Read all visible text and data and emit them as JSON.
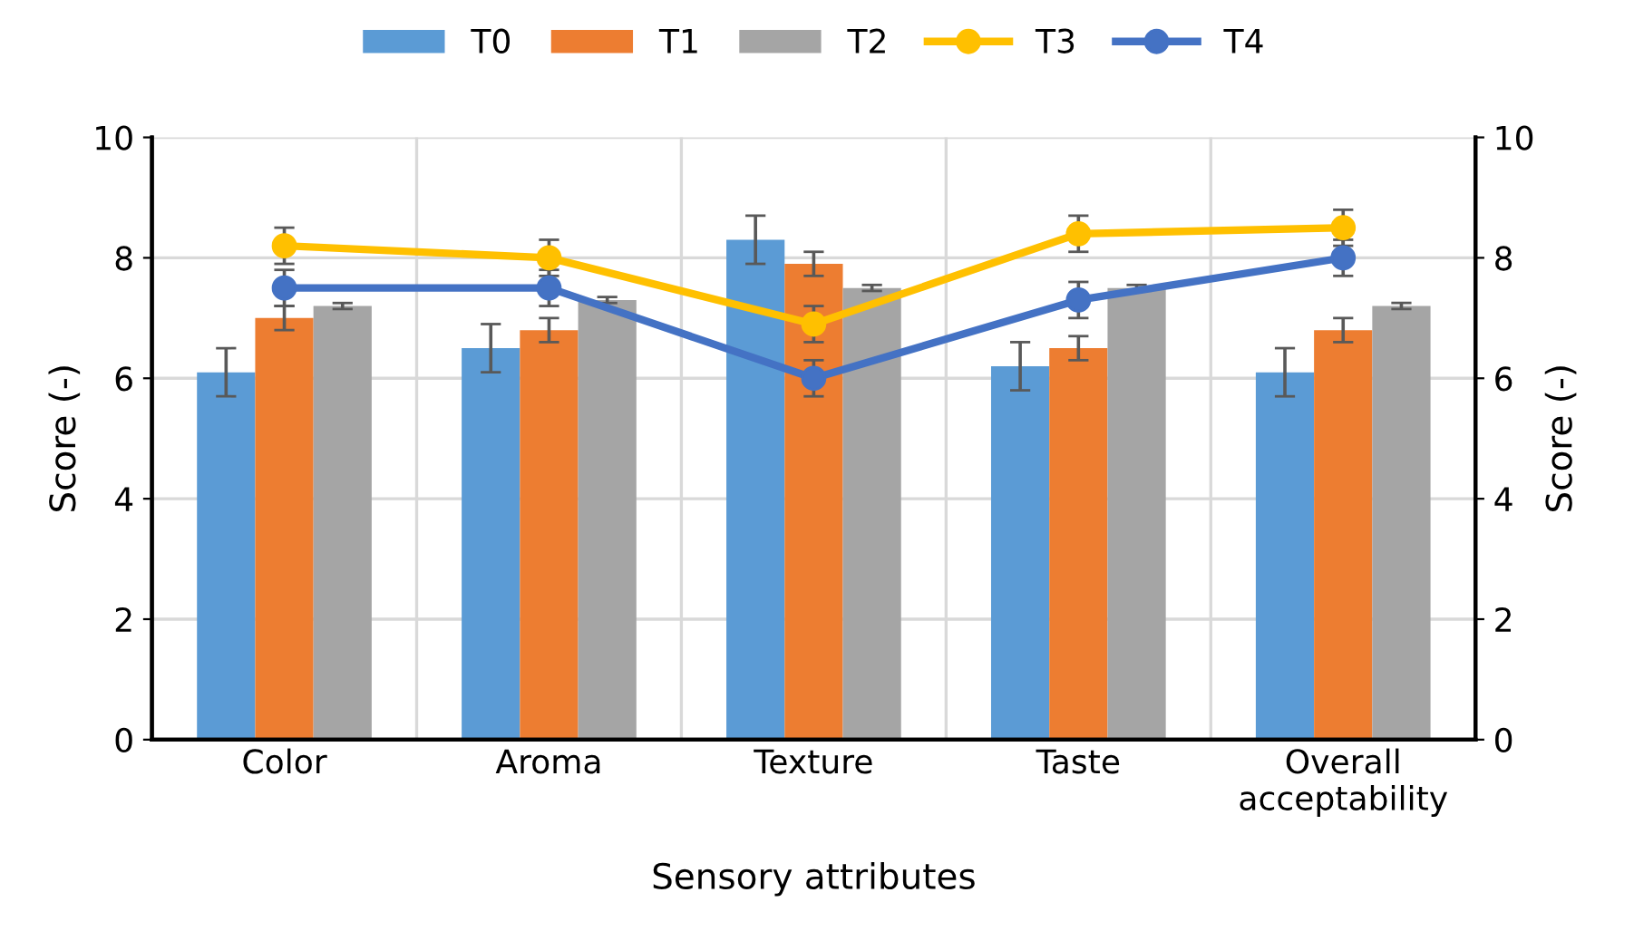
{
  "chart_data": {
    "type": "bar",
    "xlabel": "Sensory attributes",
    "ylabel": "Score (-)",
    "y2label": "Score (-)",
    "categories": [
      "Color",
      "Aroma",
      "Texture",
      "Taste",
      "Overall\nacceptability"
    ],
    "series": [
      {
        "name": "T0",
        "color": "#5b9bd5",
        "values": [
          6.1,
          6.5,
          8.3,
          6.2,
          6.1
        ],
        "errors": [
          0.4,
          0.4,
          0.4,
          0.4,
          0.4
        ]
      },
      {
        "name": "T1",
        "color": "#ed7d31",
        "values": [
          7.0,
          6.8,
          7.9,
          6.5,
          6.8
        ],
        "errors": [
          0.2,
          0.2,
          0.2,
          0.2,
          0.2
        ]
      },
      {
        "name": "T2",
        "color": "#a5a5a5",
        "values": [
          7.2,
          7.3,
          7.5,
          7.5,
          7.2
        ],
        "errors": [
          0.05,
          0.05,
          0.05,
          0.05,
          0.05
        ]
      },
      {
        "name": "T3",
        "type": "line",
        "color": "#ffc000",
        "values": [
          8.2,
          8.0,
          6.9,
          8.4,
          8.5
        ],
        "errors": [
          0.3,
          0.3,
          0.3,
          0.3,
          0.3
        ]
      },
      {
        "name": "T4",
        "type": "line",
        "color": "#4472c4",
        "values": [
          7.5,
          7.5,
          6.0,
          7.3,
          8.0
        ],
        "errors": [
          0.3,
          0.3,
          0.3,
          0.3,
          0.3
        ]
      }
    ],
    "ylim": [
      0,
      10
    ],
    "yticks": [
      0,
      2,
      4,
      6,
      8,
      10
    ],
    "y2lim": [
      0,
      10
    ],
    "y2ticks": [
      0,
      2,
      4,
      6,
      8,
      10
    ],
    "grid": true,
    "legend": "top",
    "marker": "circle"
  }
}
